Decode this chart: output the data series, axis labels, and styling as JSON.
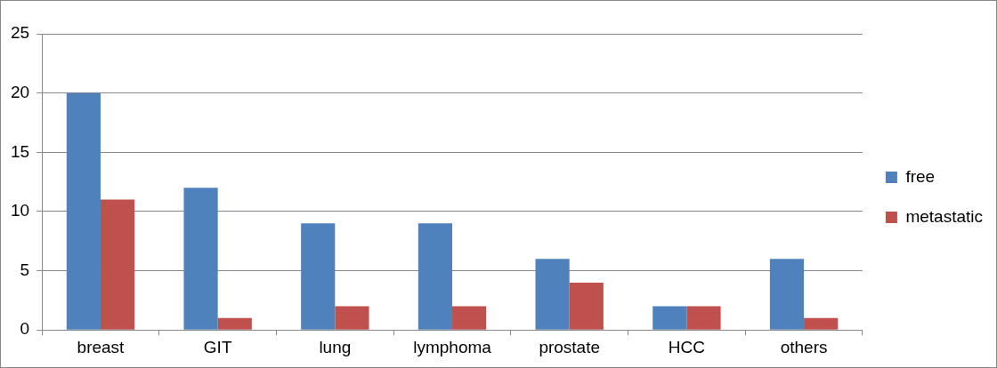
{
  "chart_data": {
    "type": "bar",
    "categories": [
      "breast",
      "GIT",
      "lung",
      "lymphoma",
      "prostate",
      "HCC",
      "others"
    ],
    "series": [
      {
        "name": "free",
        "color": "#4f81bd",
        "values": [
          20,
          12,
          9,
          9,
          6,
          2,
          6
        ]
      },
      {
        "name": "metastatic",
        "color": "#c0504d",
        "values": [
          11,
          1,
          2,
          2,
          4,
          2,
          1
        ]
      }
    ],
    "ylim": [
      0,
      25
    ],
    "yticks": [
      0,
      5,
      10,
      15,
      20,
      25
    ],
    "grid": "y",
    "legend": "right"
  }
}
